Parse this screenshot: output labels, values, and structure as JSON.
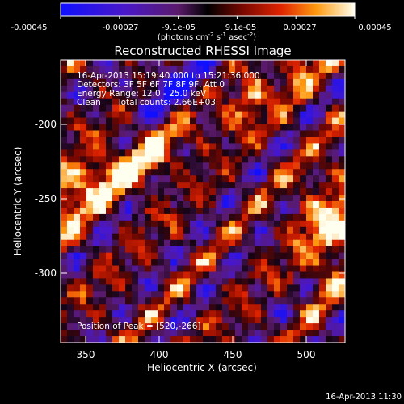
{
  "chart_data": {
    "type": "heatmap",
    "title": "Reconstructed RHESSI Image",
    "xlabel": "Heliocentric X (arcsec)",
    "ylabel": "Heliocentric Y (arcsec)",
    "xlim": [
      333,
      525
    ],
    "ylim": [
      -352,
      -165
    ],
    "xticks": [
      350,
      400,
      450,
      500
    ],
    "yticks": [
      -200,
      -250,
      -300
    ],
    "colorbar": {
      "min": -0.00045,
      "max": 0.00045,
      "tick_labels": [
        "-0.00045",
        "-0.00027",
        "-9.1e-05",
        "9.1e-05",
        "0.00027",
        "0.00045"
      ],
      "unit_label": "(photons cm",
      "unit_sup1": "-2",
      "unit_mid": " s",
      "unit_sup2": "-1",
      "unit_mid2": " asec",
      "unit_sup3": "-2",
      "unit_end": ")"
    },
    "annotations": {
      "time_range": "16-Apr-2013 15:19:40.000 to 15:21:36.000",
      "detectors": "Detectors: 3F 5F 6F 7F 8F 9F, Att 0",
      "energy_range": "Energy Range: 12.0 - 25.0 keV",
      "method": "Clean",
      "total_counts": "Total counts: 2.66E+03",
      "peak_position": "Position of Peak = [520,-266]"
    },
    "peak": [
      520,
      -266
    ],
    "footer_timestamp": "16-Apr-2013 11:30"
  }
}
